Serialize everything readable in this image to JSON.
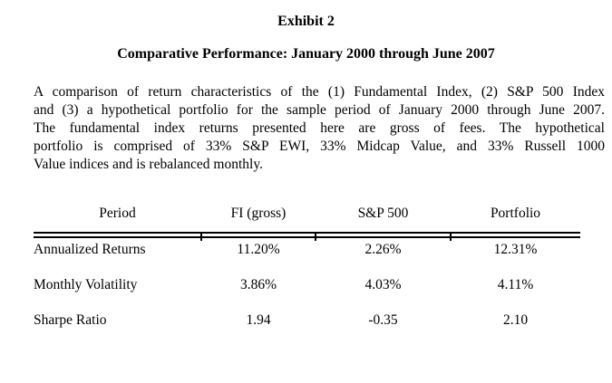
{
  "exhibit": {
    "label": "Exhibit 2",
    "title": "Comparative Performance: January 2000 through June 2007"
  },
  "description": {
    "lines": [
      "A comparison of return characteristics of the (1) Fundamental Index, (2) S&P 500 Index",
      "and (3) a hypothetical portfolio for the sample period of January 2000 through June 2007.",
      "The fundamental index returns presented here are gross of fees.  The hypothetical",
      "portfolio is comprised of 33% S&P EWI, 33% Midcap Value, and 33% Russell 1000",
      "Value indices and is rebalanced monthly."
    ]
  },
  "table": {
    "headers": [
      "Period",
      "FI (gross)",
      "S&P 500",
      "Portfolio"
    ],
    "rows": [
      {
        "label": "Annualized Returns",
        "values": [
          "11.20%",
          "2.26%",
          "12.31%"
        ]
      },
      {
        "label": "Monthly Volatility",
        "values": [
          "3.86%",
          "4.03%",
          "4.11%"
        ]
      },
      {
        "label": "Sharpe Ratio",
        "values": [
          "1.94",
          "-0.35",
          "2.10"
        ]
      }
    ]
  },
  "colors": {
    "text": "#000000",
    "background": "#ffffff"
  }
}
